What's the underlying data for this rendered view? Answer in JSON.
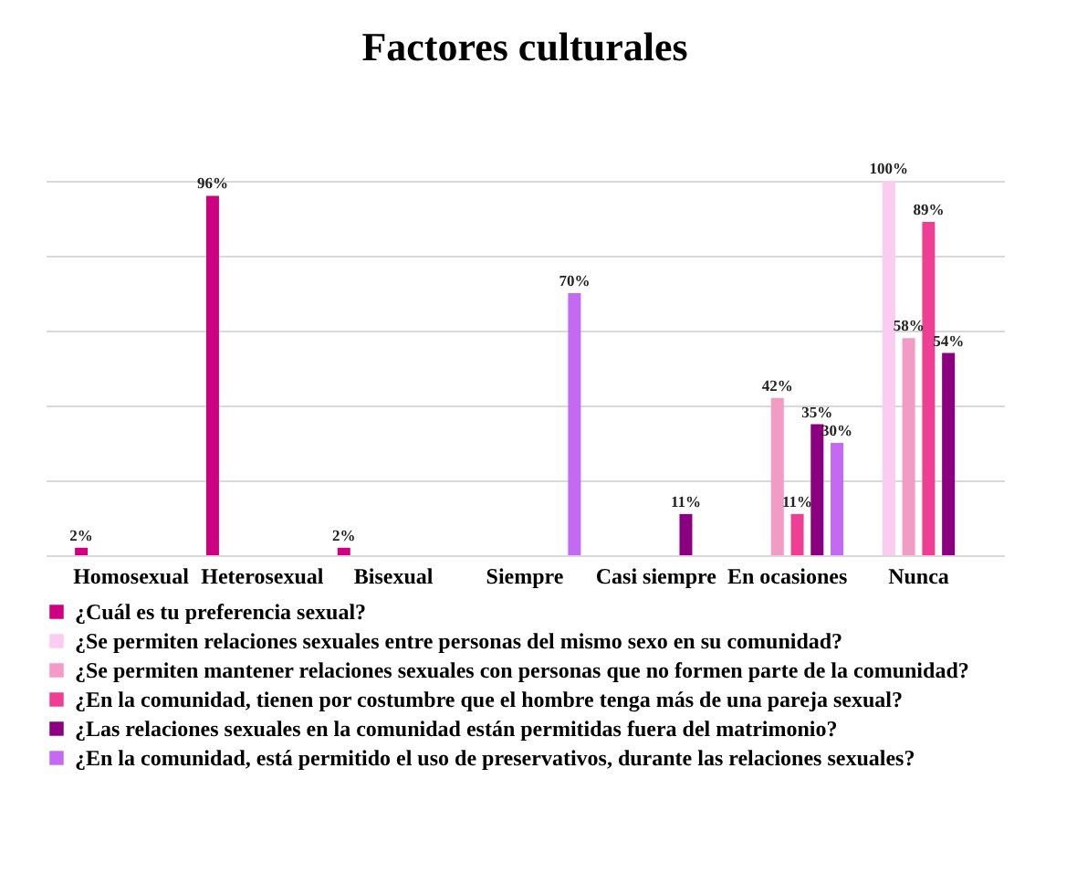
{
  "chart_data": {
    "type": "bar",
    "title": "Factores culturales",
    "categories": [
      "Homosexual",
      "Heterosexual",
      "Bisexual",
      "Siempre",
      "Casi siempre",
      "En ocasiones",
      "Nunca"
    ],
    "series": [
      {
        "name": "¿Cuál es tu preferencia sexual?",
        "color": "#cc0080",
        "values": [
          2,
          96,
          2,
          null,
          null,
          null,
          null
        ],
        "value_labels": [
          "2%",
          "96%",
          "2%",
          null,
          null,
          null,
          null
        ]
      },
      {
        "name": "¿Se permiten relaciones sexuales entre personas del mismo sexo en su comunidad?",
        "color": "#f9ccf0",
        "values": [
          null,
          null,
          null,
          null,
          null,
          null,
          100
        ],
        "value_labels": [
          null,
          null,
          null,
          null,
          null,
          null,
          "100%"
        ]
      },
      {
        "name": "¿Se permiten mantener relaciones sexuales con personas que no formen parte de la comunidad?",
        "color": "#f29bc4",
        "values": [
          null,
          null,
          null,
          null,
          null,
          42,
          58
        ],
        "value_labels": [
          null,
          null,
          null,
          null,
          null,
          "42%",
          "58%"
        ]
      },
      {
        "name": "¿En la comunidad, tienen por costumbre que el hombre tenga más de una pareja sexual?",
        "color": "#ee3f95",
        "values": [
          null,
          null,
          null,
          null,
          null,
          11,
          89
        ],
        "value_labels": [
          null,
          null,
          null,
          null,
          null,
          "11%",
          "89%"
        ]
      },
      {
        "name": "¿Las relaciones sexuales en la comunidad están permitidas fuera del matrimonio?",
        "color": "#8b0080",
        "values": [
          null,
          null,
          null,
          null,
          11,
          35,
          54
        ],
        "value_labels": [
          null,
          null,
          null,
          null,
          "11%",
          "35%",
          "54%"
        ]
      },
      {
        "name": "¿En la comunidad, está permitido el uso de preservativos, durante las relaciones sexuales?",
        "color": "#c46af2",
        "values": [
          null,
          null,
          null,
          70,
          null,
          30,
          null
        ],
        "value_labels": [
          null,
          null,
          null,
          "70%",
          null,
          "30%",
          null
        ]
      }
    ],
    "ylim": [
      0,
      100
    ],
    "yticks": [
      {
        "value": 0,
        "label": null
      },
      {
        "value": 20,
        "label": null
      },
      {
        "value": 40,
        "label": null
      },
      {
        "value": 60,
        "label": null
      },
      {
        "value": 80,
        "label": null
      },
      {
        "value": 100,
        "label": null
      }
    ],
    "grid": "y",
    "tick_labels": "x",
    "legend": "bottom"
  }
}
